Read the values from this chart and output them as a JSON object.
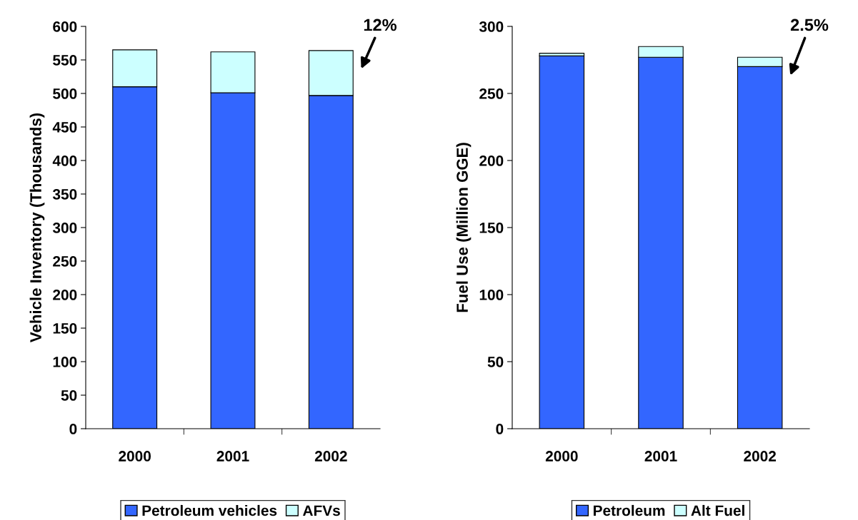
{
  "chart_data": [
    {
      "type": "bar",
      "stacked": true,
      "ylabel": "Vehicle Inventory (Thousands)",
      "categories": [
        "2000",
        "2001",
        "2002"
      ],
      "ylim": [
        0,
        600
      ],
      "yticks": [
        0,
        50,
        100,
        150,
        200,
        250,
        300,
        350,
        400,
        450,
        500,
        550,
        600
      ],
      "grid": false,
      "legend": "bottom",
      "series": [
        {
          "name": "Petroleum vehicles",
          "color": "#3366ff",
          "values": [
            510,
            501,
            497
          ]
        },
        {
          "name": "AFVs",
          "color": "#ccffff",
          "values": [
            55,
            61,
            67
          ]
        }
      ],
      "annotations": [
        "12%"
      ]
    },
    {
      "type": "bar",
      "stacked": true,
      "ylabel": "Fuel Use (Million GGE)",
      "categories": [
        "2000",
        "2001",
        "2002"
      ],
      "ylim": [
        0,
        300
      ],
      "yticks": [
        0,
        50,
        100,
        150,
        200,
        250,
        300
      ],
      "grid": false,
      "legend": "bottom",
      "series": [
        {
          "name": "Petroleum",
          "color": "#3366ff",
          "values": [
            278,
            277,
            270
          ]
        },
        {
          "name": "Alt Fuel",
          "color": "#ccffff",
          "values": [
            2,
            8,
            7
          ]
        }
      ],
      "annotations": [
        "2.5%"
      ]
    }
  ]
}
